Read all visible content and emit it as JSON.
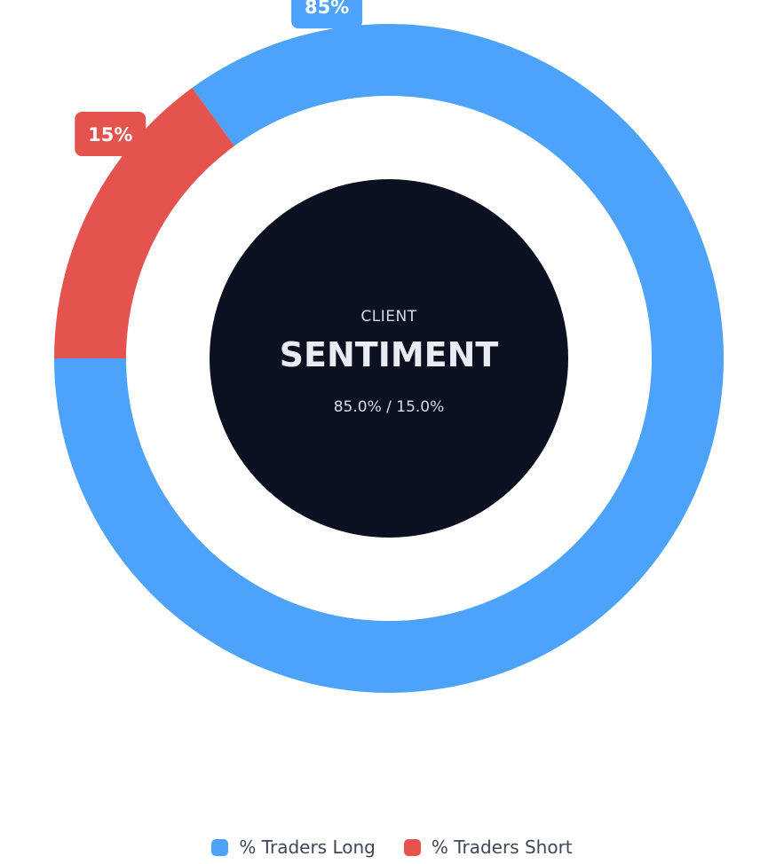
{
  "chart_data": {
    "type": "pie",
    "variant": "donut",
    "categories": [
      "% Traders Long",
      "% Traders Short"
    ],
    "values": [
      85,
      15
    ],
    "colors": [
      "#4da3fb",
      "#e5534f"
    ],
    "slice_labels": [
      "85%",
      "15%"
    ],
    "legend": {
      "placement": "bottom",
      "items": [
        {
          "label": "% Traders Long",
          "color": "#4da3fb"
        },
        {
          "label": "% Traders Short",
          "color": "#e5534f"
        }
      ]
    },
    "center": {
      "small_text": "CLIENT",
      "big_text": "SENTIMENT",
      "values_text": "85.0% / 15.0%",
      "background_color": "#0b1121"
    }
  }
}
